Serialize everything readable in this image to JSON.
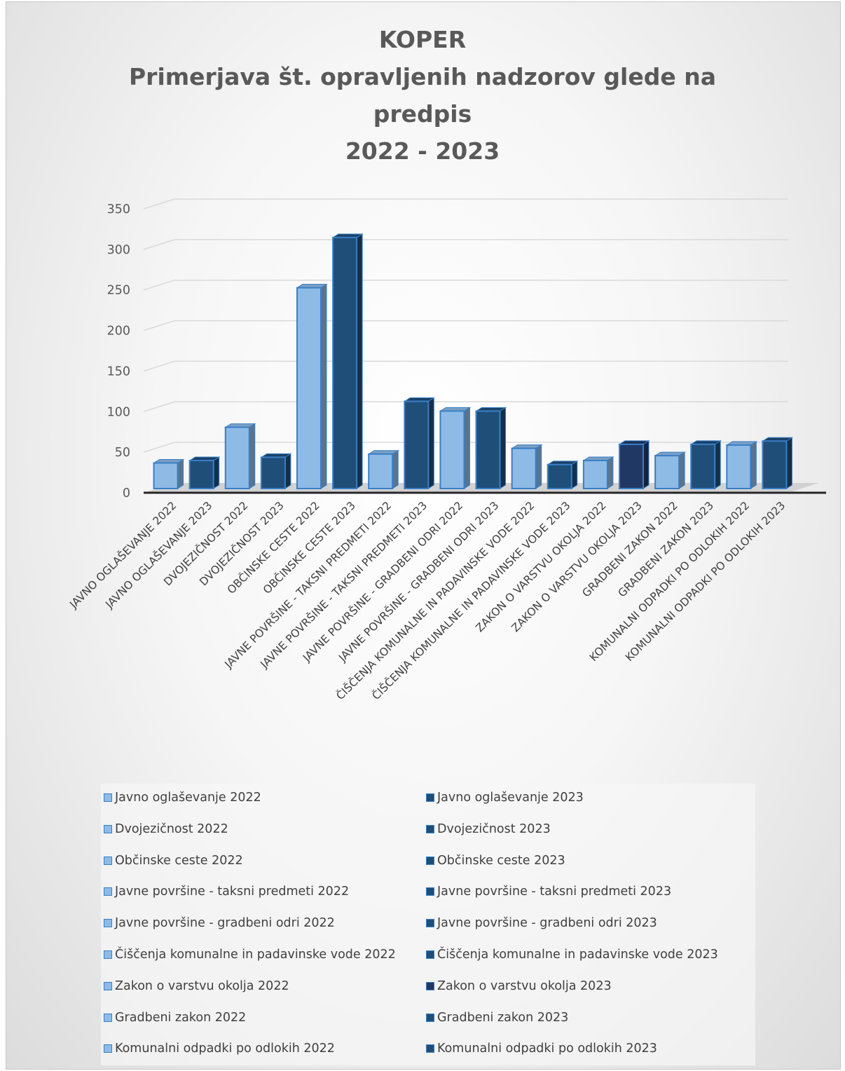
{
  "chart_data": {
    "type": "bar",
    "title": [
      "KOPER",
      "Primerjava št. opravljenih nadzorov glede na",
      "predpis",
      "2022 - 2023"
    ],
    "ylim": [
      0,
      350
    ],
    "yticks": [
      0,
      50,
      100,
      150,
      200,
      250,
      300,
      350
    ],
    "grid": true,
    "legend_placement": "bottom",
    "colors": {
      "light": "#8ebbe6",
      "dark": "#1f4e79",
      "darker": "#203864",
      "edge": "#3a7fc7"
    },
    "categories": [
      "JAVNO OGLAŠEVANJE 2022",
      "JAVNO OGLAŠEVANJE 2023",
      "DVOJEZIČNOST 2022",
      "DVOJEZIČNOST 2023",
      "OBČINSKE CESTE 2022",
      "OBČINSKE CESTE 2023",
      "JAVNE POVRŠINE - TAKSNI PREDMETI 2022",
      "JAVNE POVRŠINE - TAKSNI PREDMETI 2023",
      "JAVNE POVRŠINE - GRADBENI ODRI 2022",
      "JAVNE POVRŠINE - GRADBENI ODRI 2023",
      "ČIŠČENJA KOMUNALNE IN PADAVINSKE VODE 2022",
      "ČIŠČENJA KOMUNALNE IN PADAVINSKE VODE 2023",
      "ZAKON O VARSTVU OKOLJA 2022",
      "ZAKON O VARSTVU OKOLJA 2023",
      "GRADBENI ZAKON 2022",
      "GRADBENI ZAKON 2023",
      "KOMUNALNI ODPADKI PO ODLOKIH 2022",
      "KOMUNALNI ODPADKI PO ODLOKIH 2023"
    ],
    "values": [
      35,
      38,
      79,
      42,
      251,
      313,
      46,
      111,
      99,
      99,
      53,
      33,
      38,
      58,
      44,
      58,
      57,
      62
    ],
    "bar_colors": [
      "light",
      "dark",
      "light",
      "dark",
      "light",
      "dark",
      "light",
      "dark",
      "light",
      "dark",
      "light",
      "dark",
      "light",
      "darker",
      "light",
      "dark",
      "light",
      "dark"
    ],
    "legend": [
      "Javno oglaševanje 2022",
      "Javno oglaševanje 2023",
      "Dvojezičnost 2022",
      "Dvojezičnost 2023",
      "Občinske ceste 2022",
      "Občinske ceste 2023",
      "Javne površine - taksni predmeti 2022",
      "Javne površine - taksni predmeti 2023",
      "Javne površine - gradbeni odri 2022",
      "Javne površine - gradbeni odri 2023",
      "Čiščenja komunalne in padavinske vode 2022",
      "Čiščenja komunalne in padavinske vode 2023",
      "Zakon o varstvu okolja 2022",
      "Zakon o varstvu okolja 2023",
      "Gradbeni zakon 2022",
      "Gradbeni zakon 2023",
      "Komunalni odpadki po odlokih 2022",
      "Komunalni odpadki po odlokih 2023"
    ]
  }
}
